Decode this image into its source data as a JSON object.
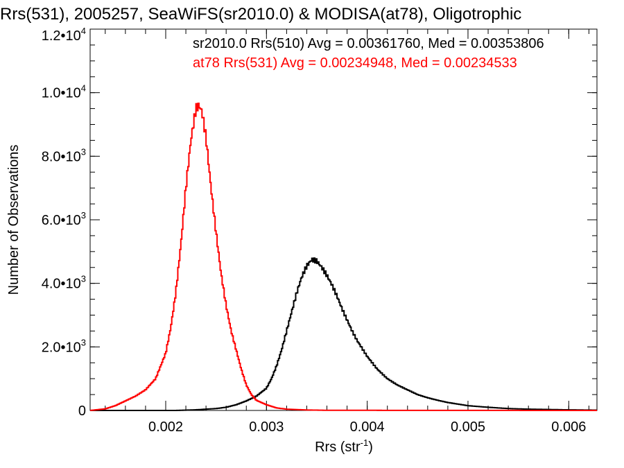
{
  "chart_data": {
    "type": "line",
    "title": "Rrs(531), 2005257, SeaWiFS(sr2010.0) & MODISA(at78), Oligotrophic",
    "xlabel_main": "Rrs (str",
    "xlabel_sup": "-1",
    "xlabel_close": ")",
    "ylabel": "Number of Observations",
    "xlim": [
      0.00125,
      0.00628
    ],
    "ylim": [
      0,
      12000
    ],
    "x_ticks": [
      {
        "value": 0.002,
        "label": "0.002"
      },
      {
        "value": 0.003,
        "label": "0.003"
      },
      {
        "value": 0.004,
        "label": "0.004"
      },
      {
        "value": 0.005,
        "label": "0.005"
      },
      {
        "value": 0.006,
        "label": "0.006"
      }
    ],
    "y_ticks": [
      {
        "value": 0,
        "mantissa": "0",
        "exponent": ""
      },
      {
        "value": 2000,
        "mantissa": "2.0•10",
        "exponent": "3"
      },
      {
        "value": 4000,
        "mantissa": "4.0•10",
        "exponent": "3"
      },
      {
        "value": 6000,
        "mantissa": "6.0•10",
        "exponent": "3"
      },
      {
        "value": 8000,
        "mantissa": "8.0•10",
        "exponent": "3"
      },
      {
        "value": 10000,
        "mantissa": "1.0•10",
        "exponent": "4"
      },
      {
        "value": 12000,
        "mantissa": "1.2•10",
        "exponent": "4"
      }
    ],
    "grid": false,
    "legend_position": "top-right",
    "series": [
      {
        "name": "sr2010.0 Rrs(510) Avg = 0.00361760, Med = 0.00353806",
        "color": "#000000",
        "x": [
          0.00125,
          0.0013,
          0.0014,
          0.0015,
          0.0016,
          0.0017,
          0.0018,
          0.0019,
          0.002,
          0.0021,
          0.0022,
          0.0023,
          0.0024,
          0.0025,
          0.0026,
          0.0027,
          0.0028,
          0.0029,
          0.003,
          0.00305,
          0.0031,
          0.00315,
          0.0032,
          0.00325,
          0.0033,
          0.00335,
          0.0034,
          0.00345,
          0.0035,
          0.00355,
          0.0036,
          0.00365,
          0.0037,
          0.00375,
          0.0038,
          0.00385,
          0.0039,
          0.004,
          0.0041,
          0.0042,
          0.0043,
          0.0044,
          0.0045,
          0.0046,
          0.0047,
          0.0048,
          0.0049,
          0.005,
          0.0052,
          0.0054,
          0.0056,
          0.0058,
          0.006,
          0.00628
        ],
        "y": [
          0,
          0,
          0,
          0,
          0,
          0,
          0,
          0,
          0,
          0,
          10,
          20,
          40,
          60,
          100,
          180,
          300,
          450,
          700,
          1000,
          1400,
          1900,
          2500,
          3100,
          3700,
          4200,
          4550,
          4750,
          4700,
          4500,
          4250,
          3950,
          3600,
          3200,
          2850,
          2500,
          2200,
          1700,
          1300,
          1000,
          800,
          650,
          500,
          400,
          320,
          250,
          200,
          150,
          100,
          60,
          40,
          30,
          20,
          10
        ]
      },
      {
        "name": "at78 Rrs(531) Avg = 0.00234948, Med = 0.00234533",
        "color": "#ff0000",
        "x": [
          0.00125,
          0.0014,
          0.0015,
          0.0016,
          0.0017,
          0.0018,
          0.0019,
          0.002,
          0.00205,
          0.0021,
          0.00215,
          0.0022,
          0.00225,
          0.0023,
          0.00233,
          0.00236,
          0.0024,
          0.00245,
          0.0025,
          0.00255,
          0.0026,
          0.00265,
          0.0027,
          0.00275,
          0.0028,
          0.00285,
          0.0029,
          0.003,
          0.0031,
          0.0032,
          0.0034,
          0.0036,
          0.00628
        ],
        "y": [
          0,
          50,
          150,
          300,
          450,
          650,
          1000,
          1800,
          2600,
          3700,
          5200,
          7000,
          8500,
          9500,
          9600,
          9400,
          8600,
          7000,
          5600,
          4300,
          3300,
          2500,
          1900,
          1300,
          800,
          500,
          320,
          180,
          80,
          40,
          15,
          5,
          0
        ]
      }
    ]
  }
}
